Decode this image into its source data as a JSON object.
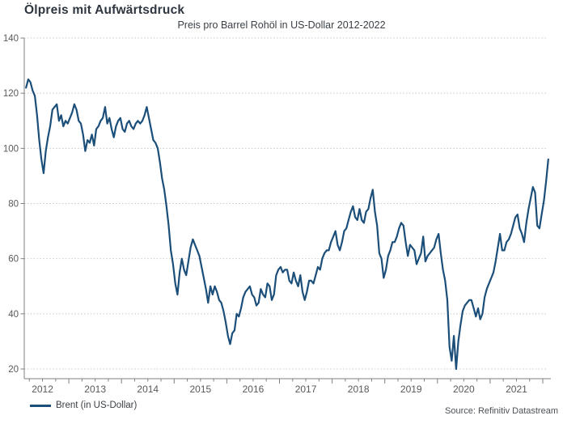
{
  "header": {
    "title": "Ölpreis mit Aufwärtsdruck",
    "subtitle": "Preis pro Barrel Rohöl in US-Dollar 2012-2022"
  },
  "legend": {
    "label": "Brent (in US-Dollar)"
  },
  "source": "Source: Refinitiv Datastream",
  "colors": {
    "line": "#1b4e79",
    "grid": "#c8c8c8",
    "axis": "#7f7f7f",
    "tick_label": "#595959",
    "title": "#2e3640",
    "text": "#3b4046"
  },
  "chart_data": {
    "type": "line",
    "title": "Ölpreis mit Aufwärtsdruck",
    "subtitle": "Preis pro Barrel Rohöl in US-Dollar 2012-2022",
    "xlabel": "",
    "ylabel": "Preis pro Barrel Rohöl in US-Dollar",
    "ylim": [
      20,
      140
    ],
    "yticks": [
      20,
      40,
      60,
      80,
      100,
      120,
      140
    ],
    "xtick_years": [
      2012,
      2013,
      2014,
      2015,
      2016,
      2017,
      2018,
      2019,
      2020,
      2021
    ],
    "x_range_years": [
      2012.15,
      2022.1
    ],
    "grid": "horizontal-dotted",
    "legend_position": "bottom-left",
    "series": [
      {
        "name": "Brent (in US-Dollar)",
        "color": "#1b4e79",
        "unit": "USD/barrel",
        "sampling": "semi-monthly",
        "x_start_year": 2012.1875,
        "x_step_years": 0.0416667,
        "values": [
          122,
          125,
          124,
          121,
          119,
          112,
          103,
          96,
          91,
          99,
          104,
          108,
          114,
          115,
          116,
          110,
          112,
          108,
          110,
          109,
          111,
          113,
          116,
          114,
          110,
          109,
          105,
          99,
          103,
          102,
          105,
          101,
          107,
          108,
          110,
          111,
          115,
          109,
          111,
          107,
          104,
          108,
          110,
          111,
          107,
          106,
          109,
          110,
          108,
          107,
          109,
          110,
          109,
          110,
          112,
          115,
          111,
          107,
          103,
          102,
          100,
          95,
          89,
          85,
          79,
          72,
          63,
          58,
          51,
          47,
          55,
          60,
          56,
          54,
          59,
          64,
          67,
          65,
          63,
          61,
          57,
          53,
          49,
          44,
          50,
          47,
          50,
          48,
          45,
          44,
          41,
          37,
          32,
          29,
          33,
          34,
          40,
          39,
          42,
          46,
          48,
          49,
          50,
          47,
          46,
          43,
          44,
          49,
          47,
          46,
          51,
          50,
          45,
          47,
          54,
          56,
          57,
          55,
          56,
          56,
          52,
          51,
          55,
          52,
          50,
          54,
          48,
          45,
          48,
          52,
          52,
          51,
          54,
          57,
          56,
          60,
          62,
          63,
          63,
          66,
          68,
          70,
          65,
          63,
          66,
          70,
          71,
          74,
          77,
          79,
          75,
          74,
          78,
          74,
          73,
          77,
          78,
          82,
          85,
          77,
          72,
          62,
          60,
          53,
          56,
          61,
          63,
          66,
          66,
          68,
          71,
          73,
          72,
          66,
          61,
          65,
          64,
          63,
          58,
          60,
          62,
          68,
          59,
          61,
          62,
          63,
          64,
          67,
          69,
          62,
          56,
          52,
          45,
          28,
          23,
          32,
          20,
          30,
          36,
          41,
          43,
          44,
          45,
          45,
          42,
          39,
          42,
          38,
          40,
          46,
          49,
          51,
          53,
          55,
          59,
          64,
          69,
          63,
          63,
          66,
          67,
          69,
          72,
          75,
          76,
          71,
          69,
          66,
          73,
          78,
          82,
          86,
          84,
          72,
          71,
          76,
          81,
          88,
          96
        ]
      }
    ]
  }
}
